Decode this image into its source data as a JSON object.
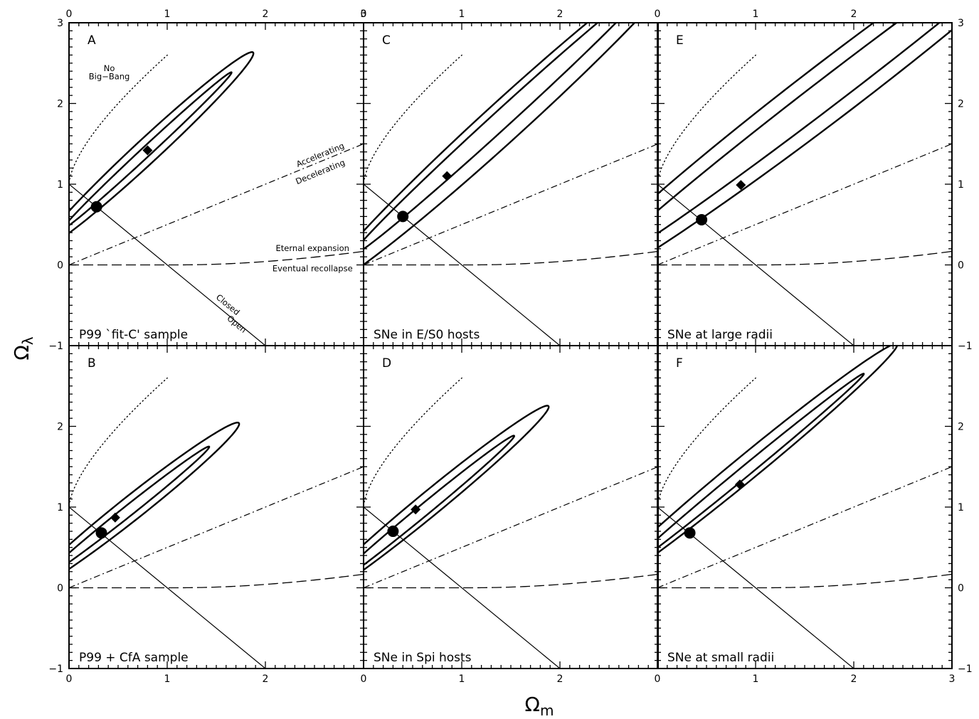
{
  "chart_data": {
    "type": "line",
    "layout": "3 columns x 2 rows of panels with shared axes",
    "xlabel": "Ω",
    "xlabel_subscript": "m",
    "ylabel": "Ω",
    "ylabel_subscript": "λ",
    "xlim": [
      0,
      3
    ],
    "ylim": [
      -1,
      3
    ],
    "x_ticks": [
      0,
      1,
      2,
      3
    ],
    "y_ticks": [
      -1,
      0,
      1,
      2,
      3
    ],
    "grid": false,
    "reference_curves": [
      {
        "id": "flat",
        "style": "solid-thin",
        "equation": "Ω_λ = 1 − Ω_m",
        "above_label": "Closed",
        "below_label": "Open"
      },
      {
        "id": "acceleration",
        "style": "dash-dot",
        "equation": "Ω_λ = Ω_m / 2",
        "above_label": "Accelerating",
        "below_label": "Decelerating"
      },
      {
        "id": "recollapse",
        "style": "dashed",
        "equation": "Ω_λ = 0 for Ω_m ≤ 1; 4Ω_m·cos³[(arccos((1−Ω_m)/Ω_m)+4π)/3] for Ω_m > 1",
        "above_label": "Eternal expansion",
        "below_label": "Eventual recollapse"
      },
      {
        "id": "big-bang",
        "style": "dotted",
        "above_label": "No Big−Bang"
      }
    ],
    "annotation_texts": {
      "no_big_bang_1": "No",
      "no_big_bang_2": "Big−Bang",
      "accelerating": "Accelerating",
      "decelerating": "Decelerating",
      "eternal_expansion": "Eternal expansion",
      "eventual_recollapse": "Eventual recollapse",
      "closed": "Closed",
      "open": "Open"
    },
    "panels": [
      {
        "letter": "A",
        "caption": "P99 `fit-C' sample",
        "best_fit": {
          "om": 0.8,
          "ol": 1.42
        },
        "flat_fit": {
          "om": 0.28,
          "ol": 0.72
        },
        "contours": [
          {
            "level": "inner",
            "center": [
              0.8,
              1.42
            ],
            "semi_major": 1.29,
            "semi_minor": 0.055,
            "angle_deg": 48.5
          },
          {
            "level": "outer",
            "center": [
              0.8,
              1.42
            ],
            "semi_major": 1.62,
            "semi_minor": 0.135,
            "angle_deg": 48.5
          }
        ]
      },
      {
        "letter": "C",
        "caption": "SNe in E/S0 hosts",
        "best_fit": {
          "om": 0.85,
          "ol": 1.1
        },
        "flat_fit": {
          "om": 0.4,
          "ol": 0.6
        },
        "contours": [
          {
            "level": "inner",
            "center": [
              1.4,
              1.8
            ],
            "semi_major": 2.25,
            "semi_minor": 0.1,
            "angle_deg": 48
          },
          {
            "level": "outer",
            "center": [
              1.45,
              1.8
            ],
            "semi_major": 2.8,
            "semi_minor": 0.22,
            "angle_deg": 48
          }
        ]
      },
      {
        "letter": "E",
        "caption": "SNe at large radii",
        "best_fit": {
          "om": 0.85,
          "ol": 0.99
        },
        "flat_fit": {
          "om": 0.45,
          "ol": 0.56
        },
        "contours": [
          {
            "level": "inner",
            "center": [
              1.8,
              2.2
            ],
            "semi_major": 3.2,
            "semi_minor": 0.16,
            "angle_deg": 43
          },
          {
            "level": "outer",
            "center": [
              1.8,
              2.2
            ],
            "semi_major": 3.8,
            "semi_minor": 0.32,
            "angle_deg": 43
          }
        ]
      },
      {
        "letter": "B",
        "caption": "P99 + CfA sample",
        "best_fit": {
          "om": 0.47,
          "ol": 0.87
        },
        "flat_fit": {
          "om": 0.33,
          "ol": 0.68
        },
        "contours": [
          {
            "level": "inner",
            "center": [
              0.6,
              0.95
            ],
            "semi_major": 1.15,
            "semi_minor": 0.06,
            "angle_deg": 44
          },
          {
            "level": "outer",
            "center": [
              0.65,
              1.0
            ],
            "semi_major": 1.5,
            "semi_minor": 0.135,
            "angle_deg": 44
          }
        ]
      },
      {
        "letter": "D",
        "caption": "SNe in Spi hosts",
        "best_fit": {
          "om": 0.53,
          "ol": 0.97
        },
        "flat_fit": {
          "om": 0.3,
          "ol": 0.7
        },
        "contours": [
          {
            "level": "inner",
            "center": [
              0.6,
              0.95
            ],
            "semi_major": 1.32,
            "semi_minor": 0.065,
            "angle_deg": 45
          },
          {
            "level": "outer",
            "center": [
              0.68,
              1.05
            ],
            "semi_major": 1.7,
            "semi_minor": 0.135,
            "angle_deg": 45
          }
        ]
      },
      {
        "letter": "F",
        "caption": "SNe at small radii",
        "best_fit": {
          "om": 0.84,
          "ol": 1.28
        },
        "flat_fit": {
          "om": 0.33,
          "ol": 0.68
        },
        "contours": [
          {
            "level": "inner",
            "center": [
              0.9,
              1.45
            ],
            "semi_major": 1.7,
            "semi_minor": 0.06,
            "angle_deg": 45
          },
          {
            "level": "outer",
            "center": [
              0.92,
              1.5
            ],
            "semi_major": 2.15,
            "semi_minor": 0.14,
            "angle_deg": 45
          }
        ]
      }
    ]
  }
}
